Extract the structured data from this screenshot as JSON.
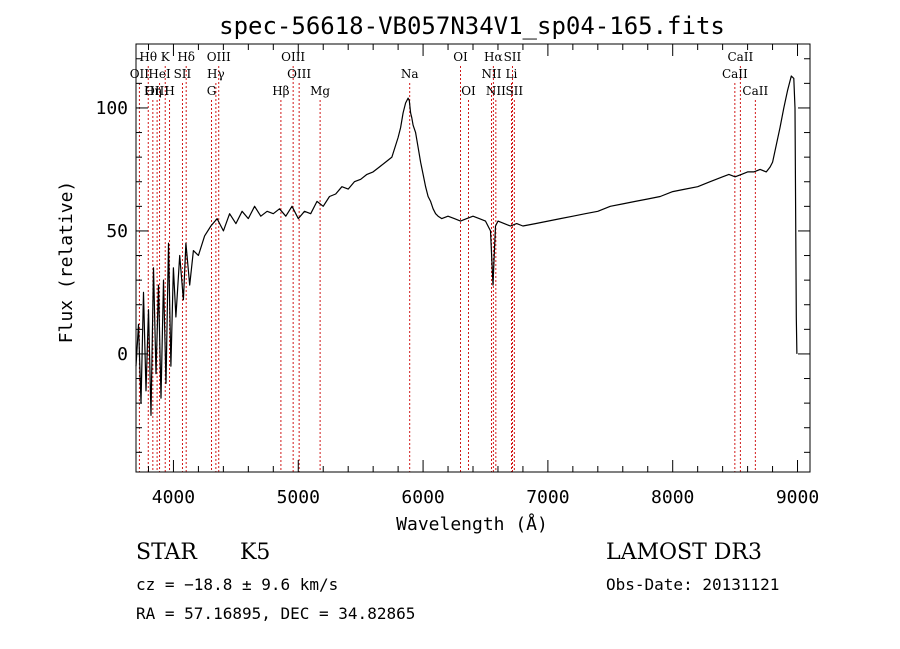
{
  "chart_data": {
    "type": "line",
    "title": "spec-56618-VB057N34V1_sp04-165.fits",
    "xlabel": "Wavelength (Å)",
    "ylabel": "Flux (relative)",
    "xlim": [
      3700,
      9100
    ],
    "ylim": [
      -48,
      126
    ],
    "x_ticks": [
      4000,
      5000,
      6000,
      7000,
      8000,
      9000
    ],
    "x_tick_labels": [
      "4000",
      "5000",
      "6000",
      "7000",
      "8000",
      "9000"
    ],
    "y_ticks": [
      0,
      50,
      100
    ],
    "y_tick_labels": [
      "0",
      "50",
      "100"
    ],
    "x_minor_step": 200,
    "y_minor_step": 10,
    "grid": false,
    "spectrum": {
      "name": "flux",
      "x": [
        3700,
        3720,
        3740,
        3760,
        3780,
        3800,
        3820,
        3840,
        3860,
        3880,
        3900,
        3920,
        3940,
        3960,
        3980,
        4000,
        4020,
        4050,
        4080,
        4100,
        4130,
        4160,
        4200,
        4250,
        4300,
        4350,
        4400,
        4450,
        4500,
        4550,
        4600,
        4650,
        4700,
        4750,
        4800,
        4850,
        4900,
        4950,
        5000,
        5050,
        5100,
        5150,
        5200,
        5250,
        5300,
        5350,
        5400,
        5450,
        5500,
        5550,
        5600,
        5650,
        5700,
        5750,
        5800,
        5820,
        5840,
        5860,
        5880,
        5890,
        5900,
        5910,
        5920,
        5940,
        5960,
        5980,
        6000,
        6020,
        6040,
        6060,
        6080,
        6100,
        6120,
        6150,
        6200,
        6250,
        6300,
        6350,
        6400,
        6450,
        6500,
        6540,
        6560,
        6570,
        6580,
        6600,
        6650,
        6700,
        6750,
        6800,
        6900,
        7000,
        7100,
        7200,
        7300,
        7400,
        7500,
        7600,
        7700,
        7800,
        7900,
        8000,
        8100,
        8200,
        8300,
        8400,
        8450,
        8500,
        8550,
        8600,
        8650,
        8700,
        8750,
        8780,
        8800,
        8830,
        8860,
        8890,
        8920,
        8950,
        8970,
        8980,
        8985,
        8990,
        8995
      ],
      "y": [
        -5,
        12,
        -20,
        25,
        -15,
        18,
        -25,
        35,
        -8,
        28,
        -18,
        30,
        -12,
        45,
        -5,
        35,
        15,
        40,
        22,
        45,
        28,
        42,
        40,
        48,
        52,
        55,
        50,
        57,
        53,
        58,
        55,
        60,
        56,
        58,
        57,
        59,
        56,
        60,
        55,
        58,
        57,
        62,
        60,
        64,
        65,
        68,
        67,
        70,
        71,
        73,
        74,
        76,
        78,
        80,
        88,
        92,
        98,
        102,
        104,
        103,
        98,
        96,
        93,
        90,
        84,
        78,
        73,
        68,
        64,
        62,
        59,
        57,
        56,
        55,
        56,
        55,
        54,
        55,
        56,
        55,
        54,
        50,
        28,
        40,
        52,
        54,
        53,
        52,
        53,
        52,
        53,
        54,
        55,
        56,
        57,
        58,
        60,
        61,
        62,
        63,
        64,
        66,
        67,
        68,
        70,
        72,
        73,
        72,
        73,
        74,
        74,
        75,
        74,
        76,
        78,
        85,
        92,
        100,
        107,
        113,
        112,
        100,
        60,
        15,
        0
      ]
    },
    "lines": [
      {
        "name": "Hθ",
        "wave": 3798,
        "row": 1
      },
      {
        "name": "OII",
        "wave": 3727,
        "row": 2
      },
      {
        "name": "OIII",
        "wave": 3869,
        "row": 3
      },
      {
        "name": "K",
        "wave": 3934,
        "row": 1
      },
      {
        "name": "H",
        "wave": 3969,
        "row": 3
      },
      {
        "name": "HeI",
        "wave": 3889,
        "row": 2
      },
      {
        "name": "Hη",
        "wave": 3835,
        "row": 3
      },
      {
        "name": "Hδ",
        "wave": 4102,
        "row": 1
      },
      {
        "name": "SII",
        "wave": 4072,
        "row": 2
      },
      {
        "name": "OIII",
        "wave": 4363,
        "row": 1
      },
      {
        "name": "Hγ",
        "wave": 4340,
        "row": 2
      },
      {
        "name": "G",
        "wave": 4305,
        "row": 3
      },
      {
        "name": "OIII",
        "wave": 4959,
        "row": 1
      },
      {
        "name": "OIII",
        "wave": 5007,
        "row": 2
      },
      {
        "name": "Hβ",
        "wave": 4861,
        "row": 3
      },
      {
        "name": "Mg",
        "wave": 5175,
        "row": 3
      },
      {
        "name": "Na",
        "wave": 5893,
        "row": 2
      },
      {
        "name": "OI",
        "wave": 6300,
        "row": 1
      },
      {
        "name": "OI",
        "wave": 6364,
        "row": 3
      },
      {
        "name": "Hα",
        "wave": 6563,
        "row": 1
      },
      {
        "name": "NII",
        "wave": 6548,
        "row": 2
      },
      {
        "name": "NII",
        "wave": 6583,
        "row": 3
      },
      {
        "name": "SII",
        "wave": 6716,
        "row": 1
      },
      {
        "name": "Li",
        "wave": 6708,
        "row": 2
      },
      {
        "name": "SII",
        "wave": 6731,
        "row": 3
      },
      {
        "name": "CaII",
        "wave": 8542,
        "row": 1
      },
      {
        "name": "CaII",
        "wave": 8498,
        "row": 2
      },
      {
        "name": "CaII",
        "wave": 8662,
        "row": 3
      }
    ],
    "colors": {
      "spectrum": "#000000",
      "lines": "#cc0000",
      "axes": "#000000"
    }
  },
  "info": {
    "obj_class": "STAR",
    "subclass": "K5",
    "survey": "LAMOST DR3",
    "cz": "cz = −18.8 ± 9.6 km/s",
    "obs_date": "Obs-Date: 20131121",
    "radec": "RA =  57.16895, DEC =  34.82865"
  }
}
